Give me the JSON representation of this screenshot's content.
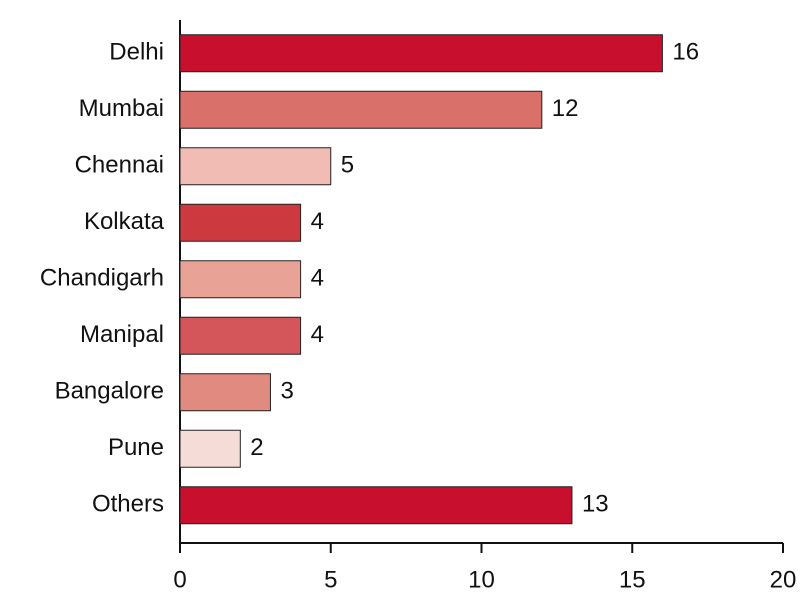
{
  "chart_data": {
    "type": "bar",
    "orientation": "horizontal",
    "categories": [
      "Delhi",
      "Mumbai",
      "Chennai",
      "Kolkata",
      "Chandigarh",
      "Manipal",
      "Bangalore",
      "Pune",
      "Others"
    ],
    "values": [
      16,
      12,
      5,
      4,
      4,
      4,
      3,
      2,
      13
    ],
    "colors": [
      "#c8102e",
      "#d9706a",
      "#f0bcb4",
      "#cc3a40",
      "#e8a396",
      "#d4555a",
      "#e08a80",
      "#f5dcd6",
      "#c8102e"
    ],
    "xlim": [
      0,
      20
    ],
    "xticks": [
      0,
      5,
      10,
      15,
      20
    ],
    "grid": false
  }
}
